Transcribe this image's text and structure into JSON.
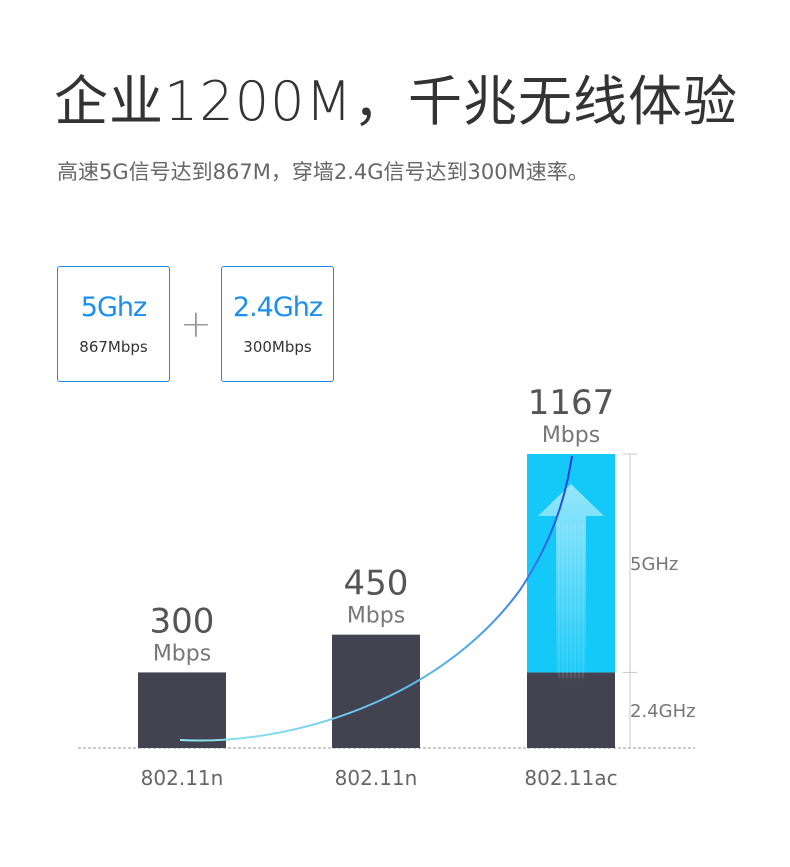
{
  "header": {
    "title": "企业1200M，千兆无线体验",
    "subtitle": "高速5G信号达到867M，穿墙2.4G信号达到300M速率。"
  },
  "bands": [
    {
      "freq": "5Ghz",
      "rate": "867Mbps"
    },
    {
      "freq": "2.4Ghz",
      "rate": "300Mbps"
    }
  ],
  "plus_symbol": "+",
  "colors": {
    "bar_dark": "#434250",
    "bar_5ghz": "#14c9f7",
    "accent_blue": "#1a8ff0",
    "curve_start": "#8fe8ee",
    "curve_end": "#1c3ad6"
  },
  "chart_data": {
    "type": "bar",
    "categories": [
      "802.11n",
      "802.11n",
      "802.11ac"
    ],
    "series": [
      {
        "values": [
          300,
          450,
          300
        ]
      },
      {
        "values": [
          0,
          0,
          867
        ]
      }
    ],
    "totals": [
      300,
      450,
      1167
    ],
    "value_labels": [
      "300",
      "450",
      "1167"
    ],
    "unit": "Mbps",
    "bracket_labels": [
      "5GHz",
      "2.4GHz"
    ],
    "ylim": [
      0,
      1167
    ],
    "grid": false
  }
}
